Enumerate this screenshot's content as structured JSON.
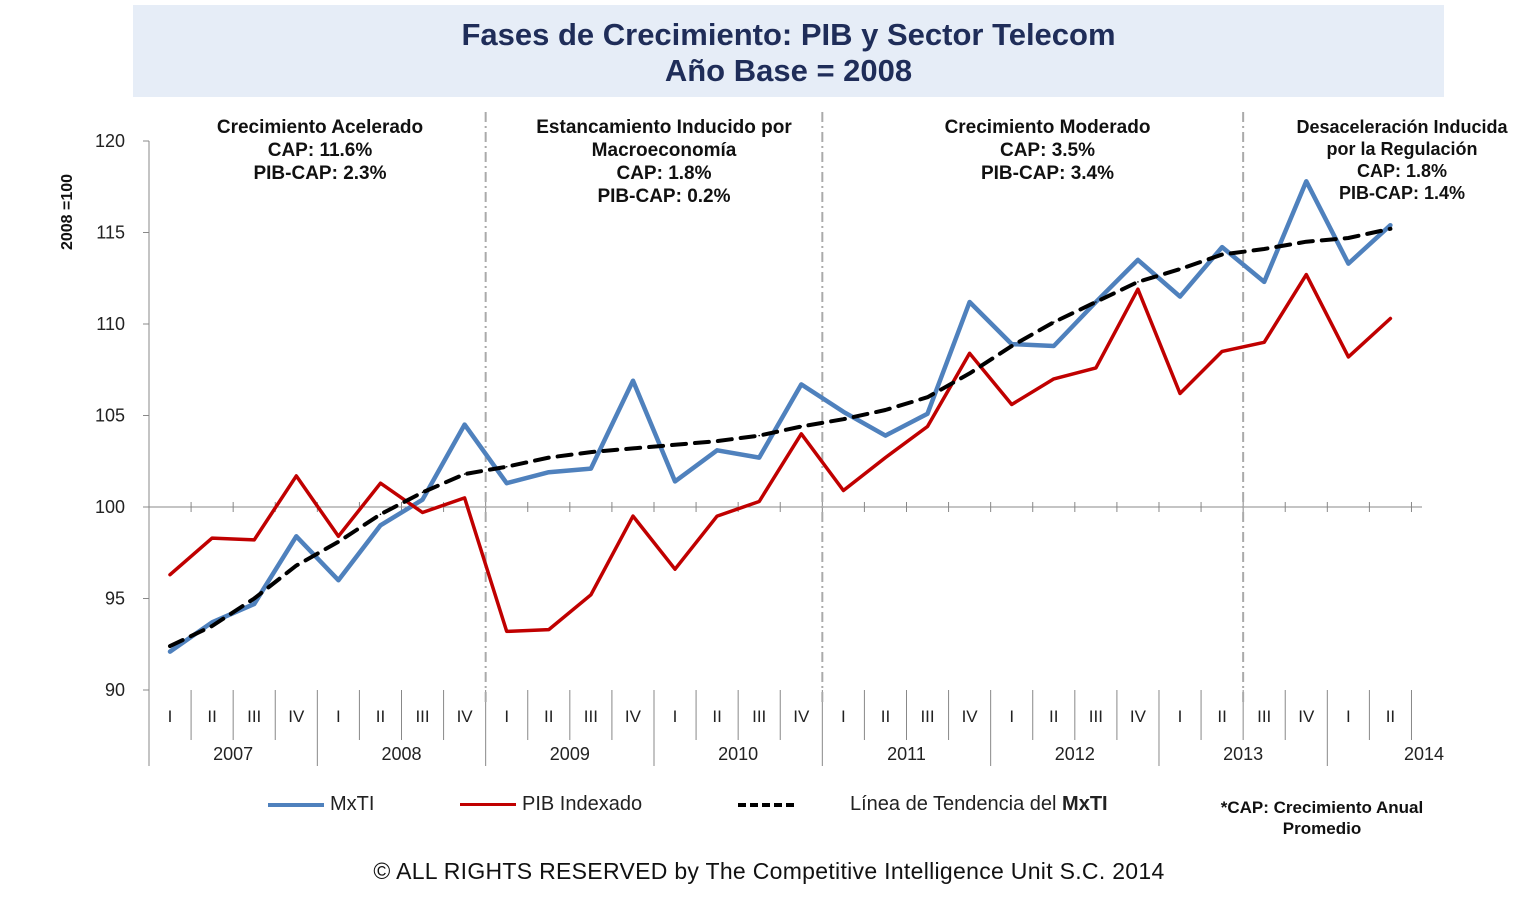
{
  "title_line1": "Fases de Crecimiento: PIB y Sector Telecom",
  "title_line2": "Año Base = 2008",
  "phases": [
    {
      "lines": [
        "Crecimiento Acelerado",
        "CAP: 11.6%",
        "PIB-CAP: 2.3%"
      ]
    },
    {
      "lines": [
        "Estancamiento Inducido por",
        "Macroeconomía",
        "CAP: 1.8%",
        "PIB-CAP: 0.2%"
      ]
    },
    {
      "lines": [
        "Crecimiento Moderado",
        "CAP: 3.5%",
        "PIB-CAP: 3.4%"
      ]
    },
    {
      "lines": [
        "Desaceleración Inducida",
        "por la Regulación",
        "CAP: 1.8%",
        "PIB-CAP: 1.4%"
      ]
    }
  ],
  "legend": {
    "mxti": "MxTI",
    "pib": "PIB Indexado",
    "trend_prefix": "Línea de Tendencia del ",
    "trend_bold": "MxTI"
  },
  "footnote": {
    "line1": "*CAP: Crecimiento Anual",
    "line2": "Promedio"
  },
  "copyright": "© ALL RIGHTS RESERVED by The Competitive Intelligence Unit S.C. 2014",
  "colors": {
    "mxti": "#4f81bd",
    "pib": "#c00000",
    "trend": "#000000",
    "title_bg": "#e6edf7",
    "title_text": "#1f2d59"
  },
  "chart_data": {
    "type": "line",
    "ylabel": "2008 =100",
    "ylim": [
      90,
      120
    ],
    "yticks": [
      "90",
      "95",
      "100",
      "105",
      "110",
      "115",
      "120"
    ],
    "quarters": [
      "I",
      "II",
      "III",
      "IV",
      "I",
      "II",
      "III",
      "IV",
      "I",
      "II",
      "III",
      "IV",
      "I",
      "II",
      "III",
      "IV",
      "I",
      "II",
      "III",
      "IV",
      "I",
      "II",
      "III",
      "IV",
      "I",
      "II",
      "III",
      "IV",
      "I",
      "II"
    ],
    "years": [
      "2007",
      "2008",
      "2009",
      "2010",
      "2011",
      "2012",
      "2013",
      "2014"
    ],
    "phase_boundaries_after_index": [
      7.5,
      15.5,
      25.5
    ],
    "series": [
      {
        "name": "MxTI",
        "values": [
          92.1,
          93.7,
          94.7,
          98.4,
          96.0,
          99.0,
          100.4,
          104.5,
          101.3,
          101.9,
          102.1,
          106.9,
          101.4,
          103.1,
          102.7,
          106.7,
          105.2,
          103.9,
          105.1,
          111.2,
          108.9,
          108.8,
          111.2,
          113.5,
          111.5,
          114.2,
          112.3,
          117.8,
          113.3,
          115.4
        ]
      },
      {
        "name": "PIB Indexado",
        "values": [
          96.3,
          98.3,
          98.2,
          101.7,
          98.4,
          101.3,
          99.7,
          100.5,
          93.2,
          93.3,
          95.2,
          99.5,
          96.6,
          99.5,
          100.3,
          104.0,
          100.9,
          102.7,
          104.4,
          108.4,
          105.6,
          107.0,
          107.6,
          111.9,
          106.2,
          108.5,
          109.0,
          112.7,
          108.2,
          110.3
        ]
      },
      {
        "name": "Línea de Tendencia del MxTI",
        "values": [
          92.4,
          93.5,
          95.0,
          96.8,
          98.1,
          99.6,
          100.8,
          101.8,
          102.2,
          102.7,
          103.0,
          103.2,
          103.4,
          103.6,
          103.9,
          104.4,
          104.8,
          105.3,
          106.0,
          107.3,
          108.8,
          110.1,
          111.2,
          112.3,
          113.0,
          113.8,
          114.1,
          114.5,
          114.7,
          115.2
        ]
      }
    ]
  }
}
